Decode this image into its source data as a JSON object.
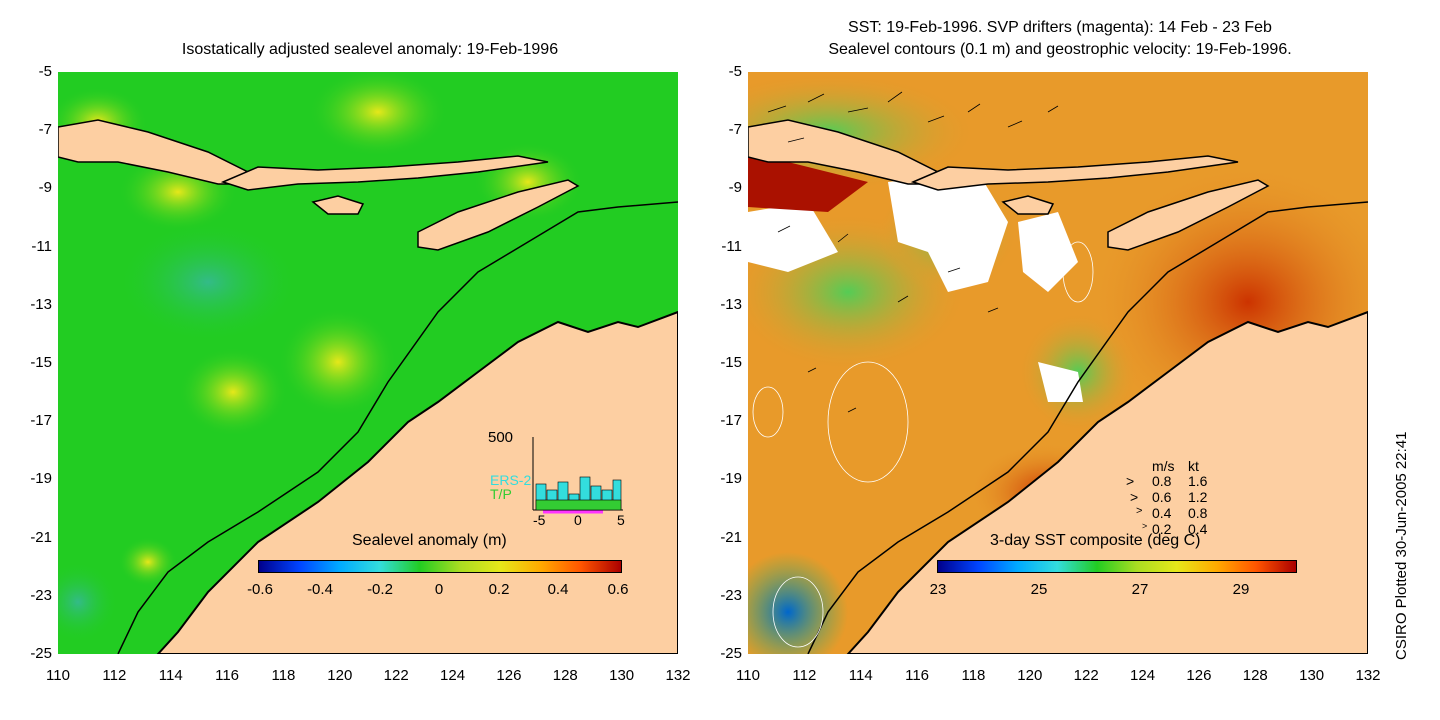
{
  "left_panel": {
    "title": "Isostatically adjusted sealevel anomaly: 19-Feb-1996",
    "colorbar": {
      "label": "Sealevel anomaly (m)",
      "ticks": [
        "-0.6",
        "-0.4",
        "-0.2",
        "0",
        "0.2",
        "0.4",
        "0.6"
      ]
    },
    "histogram": {
      "ymax_label": "500",
      "series_labels": [
        "ERS-2",
        "T/P"
      ],
      "series_colors": [
        "#33dddd",
        "#33cc33"
      ],
      "x_ticks": [
        "-5",
        "0",
        "5"
      ]
    }
  },
  "right_panel": {
    "title_line1": "SST: 19-Feb-1996. SVP drifters (magenta): 14 Feb - 23 Feb",
    "title_line2": "Sealevel contours (0.1 m) and geostrophic velocity: 19-Feb-1996.",
    "colorbar": {
      "label": "3-day SST composite (deg C)",
      "ticks": [
        "23",
        "25",
        "27",
        "29"
      ]
    },
    "velocity_legend": {
      "header_ms": "m/s",
      "header_kt": "kt",
      "rows": [
        {
          "ms": "0.8",
          "kt": "1.6"
        },
        {
          "ms": "0.6",
          "kt": "1.2"
        },
        {
          "ms": "0.4",
          "kt": "0.8"
        },
        {
          "ms": "0.2",
          "kt": "0.4"
        }
      ]
    }
  },
  "axes": {
    "y_ticks": [
      "-5",
      "-7",
      "-9",
      "-11",
      "-13",
      "-15",
      "-17",
      "-19",
      "-21",
      "-23",
      "-25"
    ],
    "x_ticks": [
      "110",
      "112",
      "114",
      "116",
      "118",
      "120",
      "122",
      "124",
      "126",
      "128",
      "130",
      "132"
    ]
  },
  "side_caption": "CSIRO Plotted 30-Jun-2005 22:41",
  "colors": {
    "land": "#fdcfa2",
    "ocean_left": "#22cc22",
    "ocean_right": "#e89a2a"
  }
}
